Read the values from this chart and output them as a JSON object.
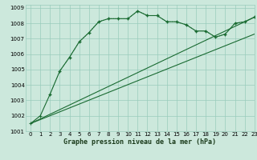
{
  "bg_color": "#cce8dc",
  "grid_color": "#99ccbb",
  "line_color": "#1a6b32",
  "title": "Graphe pression niveau de la mer (hPa)",
  "xlim": [
    -0.5,
    23
  ],
  "ylim": [
    1001,
    1009.2
  ],
  "yticks": [
    1001,
    1002,
    1003,
    1004,
    1005,
    1006,
    1007,
    1008,
    1009
  ],
  "xticks": [
    0,
    1,
    2,
    3,
    4,
    5,
    6,
    7,
    8,
    9,
    10,
    11,
    12,
    13,
    14,
    15,
    16,
    17,
    18,
    19,
    20,
    21,
    22,
    23
  ],
  "line1_x": [
    0,
    1,
    2,
    3,
    4,
    5,
    6,
    7,
    8,
    9,
    10,
    11,
    12,
    13,
    14,
    15,
    16,
    17,
    18,
    19,
    20,
    21,
    22,
    23
  ],
  "line1_y": [
    1001.5,
    1002.0,
    1003.4,
    1004.9,
    1005.8,
    1006.8,
    1007.4,
    1008.1,
    1008.3,
    1008.3,
    1008.3,
    1008.8,
    1008.5,
    1008.5,
    1008.1,
    1008.1,
    1007.9,
    1007.5,
    1007.5,
    1007.1,
    1007.3,
    1008.0,
    1008.1,
    1008.4
  ],
  "line2_x": [
    2,
    3,
    4,
    5,
    6,
    7,
    8,
    9,
    10,
    11,
    12,
    13,
    14,
    15,
    16,
    17,
    18,
    19,
    20,
    21,
    22,
    23
  ],
  "line2_y": [
    1003.4,
    1004.9,
    1005.8,
    1006.8,
    1007.4,
    1008.1,
    1008.3,
    1008.3,
    1008.3,
    1008.8,
    1008.5,
    1008.5,
    1008.1,
    1008.1,
    1007.9,
    1007.5,
    1007.5,
    1007.1,
    1007.3,
    1008.0,
    1008.1,
    1008.4
  ],
  "line3_x": [
    0,
    23
  ],
  "line3_y": [
    1001.5,
    1008.4
  ],
  "line4_x": [
    0,
    23
  ],
  "line4_y": [
    1001.5,
    1007.3
  ]
}
